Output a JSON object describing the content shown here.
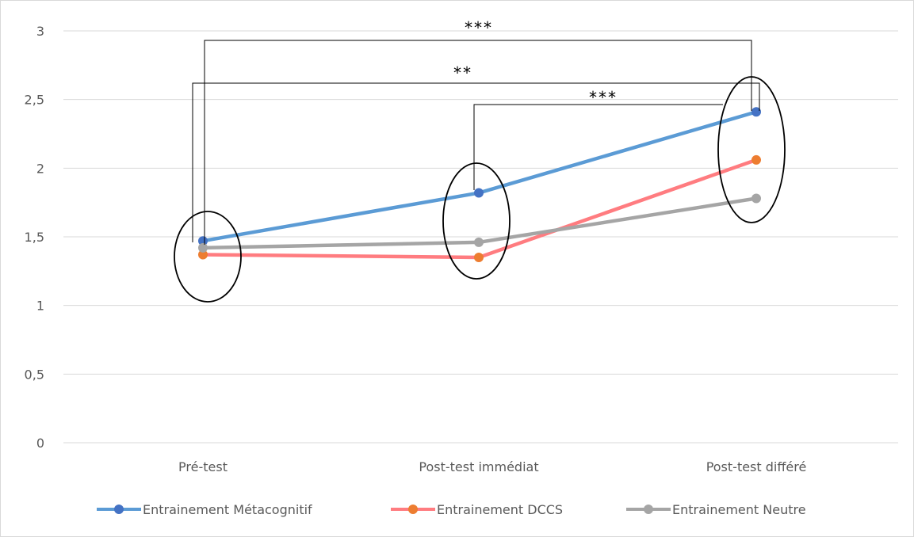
{
  "chart_data": {
    "type": "line",
    "categories": [
      "Pré-test",
      "Post-test immédiat",
      "Post-test différé"
    ],
    "series": [
      {
        "name": "Entrainement Métacognitif",
        "values": [
          1.47,
          1.82,
          2.41
        ],
        "line_color": "#5B9BD5",
        "marker_color": "#4472C4"
      },
      {
        "name": "Entrainement DCCS",
        "values": [
          1.37,
          1.35,
          2.06
        ],
        "line_color": "#FF7C80",
        "marker_color": "#ED7D31"
      },
      {
        "name": "Entrainement Neutre",
        "values": [
          1.42,
          1.46,
          1.78
        ],
        "line_color": "#A5A5A5",
        "marker_color": "#A5A5A5"
      }
    ],
    "y_ticks": [
      "0",
      "0,5",
      "1",
      "1,5",
      "2",
      "2,5",
      "3"
    ],
    "ylim": [
      0,
      3
    ],
    "grid": true,
    "legend_position": "bottom",
    "significance": [
      {
        "label": "***",
        "from": "Pré-test",
        "to": "Post-test différé"
      },
      {
        "label": "**",
        "from": "Pré-test",
        "to": "Post-test différé"
      },
      {
        "label": "***",
        "from": "Post-test immédiat",
        "to": "Post-test différé"
      }
    ]
  }
}
